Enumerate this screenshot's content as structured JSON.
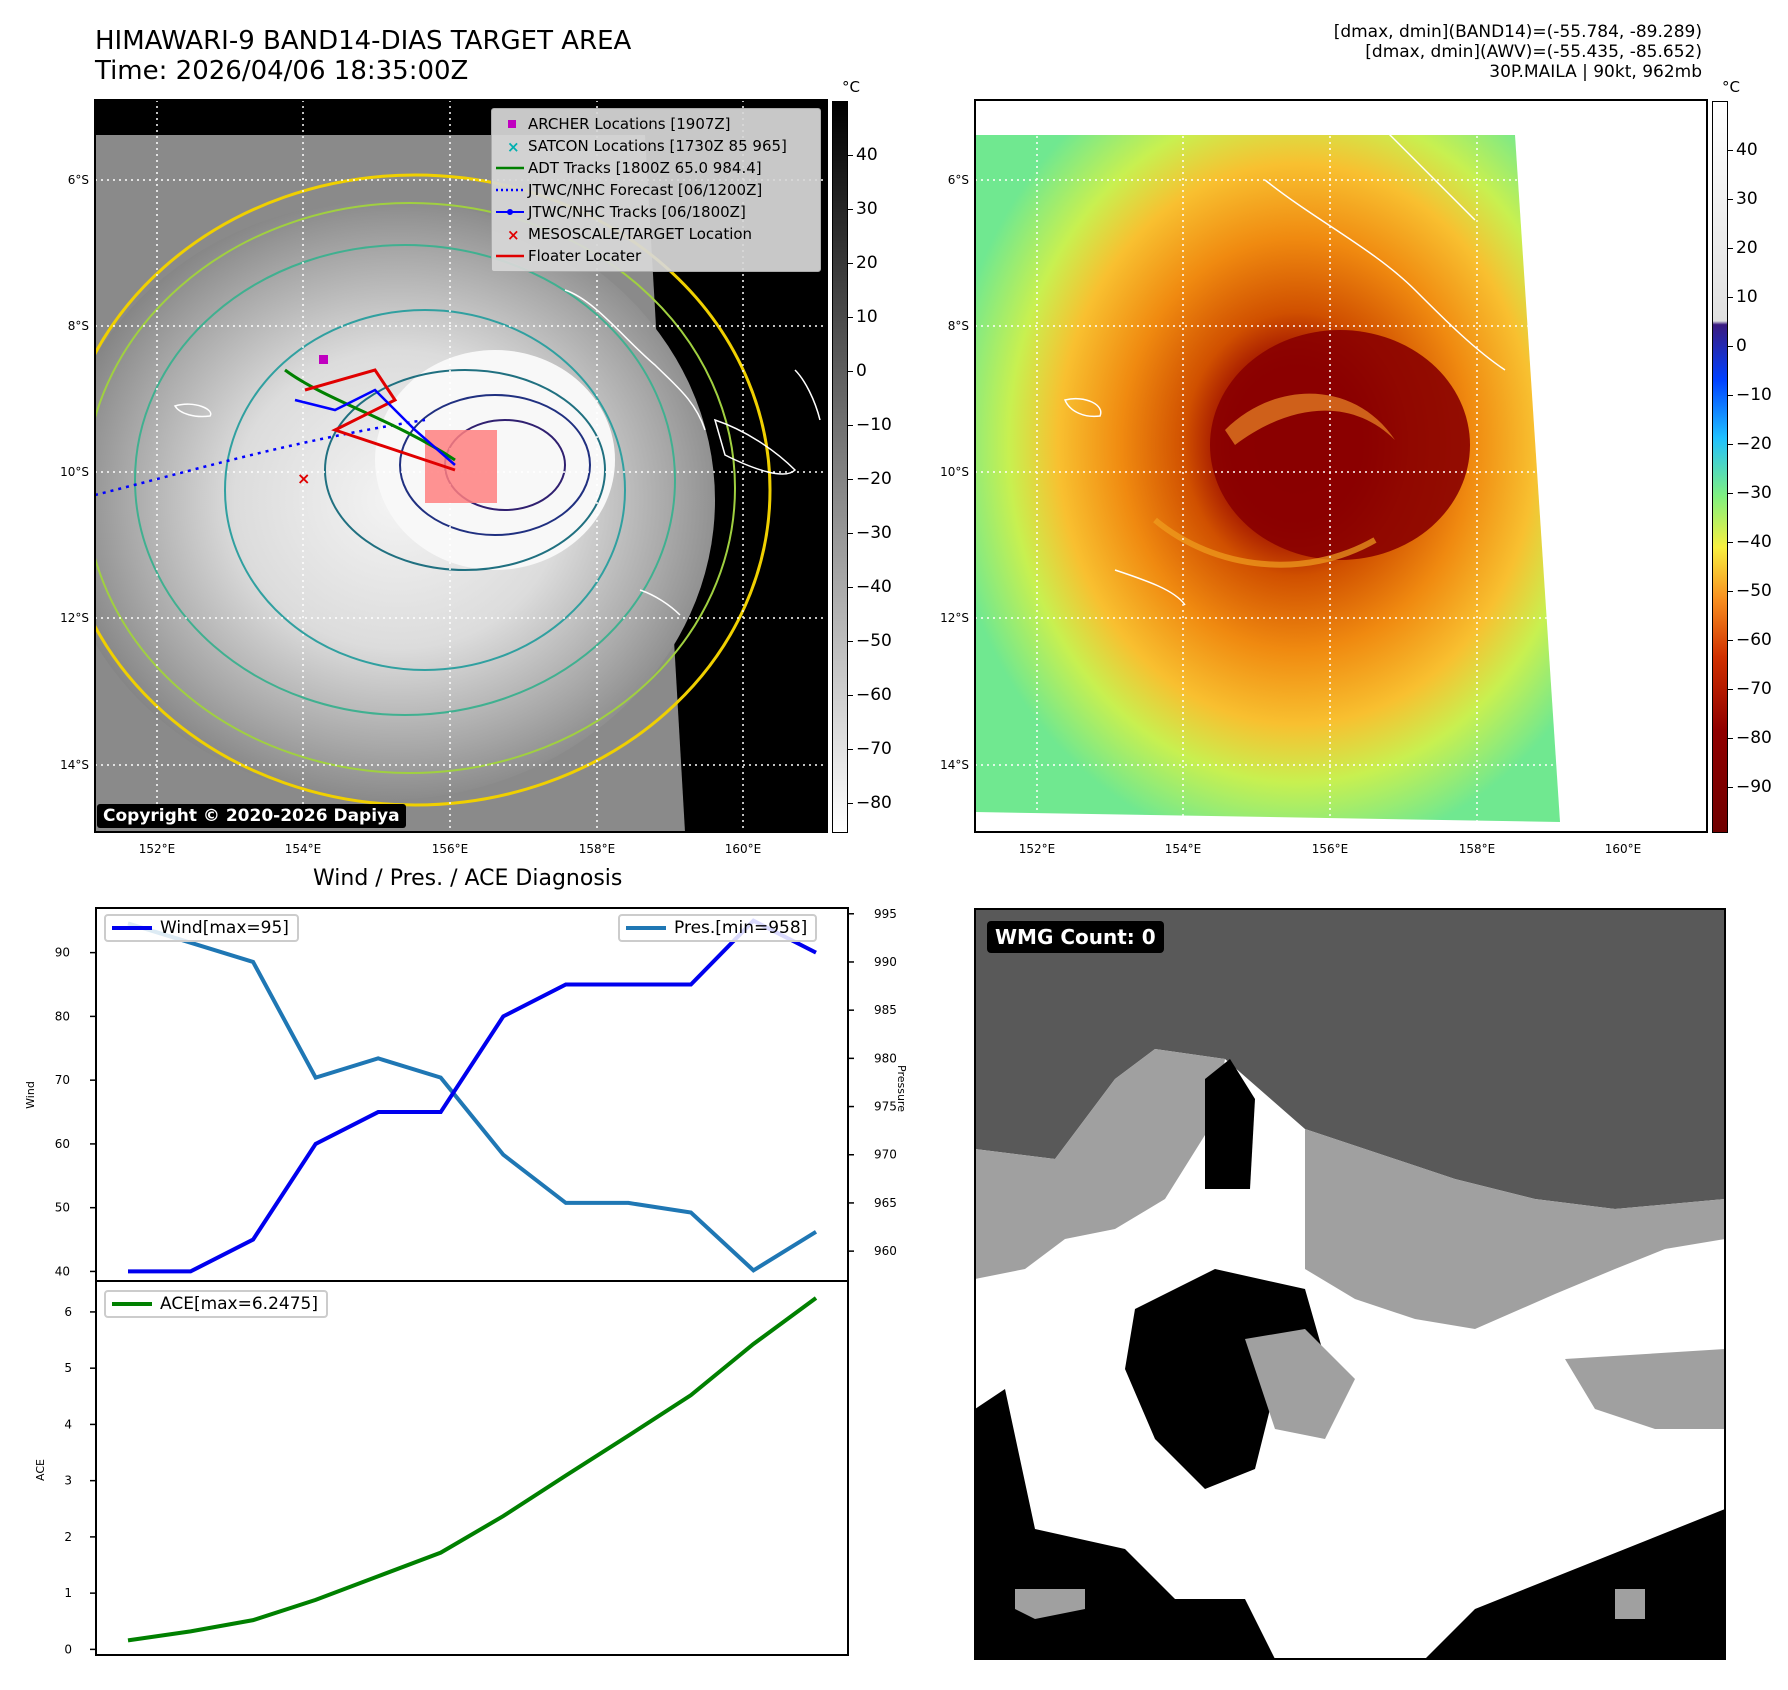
{
  "header": {
    "title_line1": "HIMAWARI-9 BAND14-DIAS TARGET AREA",
    "title_line2": "Time: 2026/04/06 18:35:00Z",
    "info_line1": "[dmax, dmin](BAND14)=(-55.784, -89.289)",
    "info_line2": "[dmax, dmin](AWV)=(-55.435, -85.652)",
    "info_line3": "30P.MAILA | 90kt, 962mb"
  },
  "map": {
    "lat_labels": [
      "6°S",
      "8°S",
      "10°S",
      "12°S",
      "14°S"
    ],
    "lon_labels": [
      "152°E",
      "154°E",
      "156°E",
      "158°E",
      "160°E"
    ],
    "copyright": "Copyright © 2020-2026 Dapiya",
    "legend": [
      {
        "label": "ARCHER Locations [1907Z]",
        "color": "#c000c0",
        "symbol": "square"
      },
      {
        "label": "SATCON Locations [1730Z 85 965]",
        "color": "#00b0b0",
        "symbol": "x"
      },
      {
        "label": "ADT Tracks [1800Z 65.0 984.4]",
        "color": "#008000",
        "symbol": "line"
      },
      {
        "label": "JTWC/NHC Forecast [06/1200Z]",
        "color": "#0000ff",
        "symbol": "dotted"
      },
      {
        "label": "JTWC/NHC Tracks [06/1800Z]",
        "color": "#0000ff",
        "symbol": "line-dot"
      },
      {
        "label": "MESOSCALE/TARGET Location",
        "color": "#e00000",
        "symbol": "x"
      },
      {
        "label": "Floater Locater",
        "color": "#e00000",
        "symbol": "line"
      }
    ]
  },
  "colorbar_left": {
    "unit": "°C",
    "ticks": [
      "40",
      "30",
      "20",
      "10",
      "0",
      "−10",
      "−20",
      "−30",
      "−40",
      "−50",
      "−60",
      "−70",
      "−80"
    ]
  },
  "colorbar_right": {
    "unit": "°C",
    "ticks": [
      "40",
      "30",
      "20",
      "10",
      "0",
      "−10",
      "−20",
      "−30",
      "−40",
      "−50",
      "−60",
      "−70",
      "−80",
      "−90"
    ]
  },
  "diagnosis": {
    "title": "Wind / Pres. / ACE Diagnosis",
    "wind_ylabel": "Wind",
    "pressure_ylabel": "Pressure",
    "ace_ylabel": "ACE",
    "wind_legend": "Wind[max=95]",
    "pressure_legend": "Pres.[min=958]",
    "ace_legend": "ACE[max=6.2475]",
    "wind_color": "#0000ee",
    "pressure_color": "#1f77b4",
    "ace_color": "#008000"
  },
  "chart_data": [
    {
      "type": "line",
      "title": "Wind / Pres. / ACE Diagnosis",
      "ylabel": "Wind",
      "ylabel_right": "Pressure",
      "x": [
        0,
        1,
        2,
        3,
        4,
        5,
        6,
        7,
        8,
        9,
        10,
        11
      ],
      "ylim": [
        38.5,
        97
      ],
      "ylim_right": [
        956.9,
        995.6
      ],
      "yticks": [
        40,
        50,
        60,
        70,
        80,
        90
      ],
      "yticks_right": [
        960,
        965,
        970,
        975,
        980,
        985,
        990,
        995
      ],
      "series": [
        {
          "name": "Wind[max=95]",
          "axis": "left",
          "values": [
            40,
            40,
            45,
            60,
            65,
            65,
            80,
            85,
            85,
            85,
            95,
            90
          ]
        },
        {
          "name": "Pres.[min=958]",
          "axis": "right",
          "values": [
            994,
            992,
            990,
            978,
            980,
            978,
            970,
            965,
            965,
            964,
            958,
            962
          ]
        }
      ]
    },
    {
      "type": "line",
      "ylabel": "ACE",
      "x": [
        0,
        1,
        2,
        3,
        4,
        5,
        6,
        7,
        8,
        9,
        10,
        11
      ],
      "ylim": [
        -0.1,
        6.55
      ],
      "yticks": [
        0,
        1,
        2,
        3,
        4,
        5,
        6
      ],
      "series": [
        {
          "name": "ACE[max=6.2475]",
          "values": [
            0.16,
            0.32,
            0.52,
            0.88,
            1.3,
            1.72,
            2.37,
            3.09,
            3.8,
            4.52,
            5.43,
            6.2475
          ]
        }
      ]
    }
  ],
  "wmg": {
    "badge": "WMG Count: 0"
  }
}
